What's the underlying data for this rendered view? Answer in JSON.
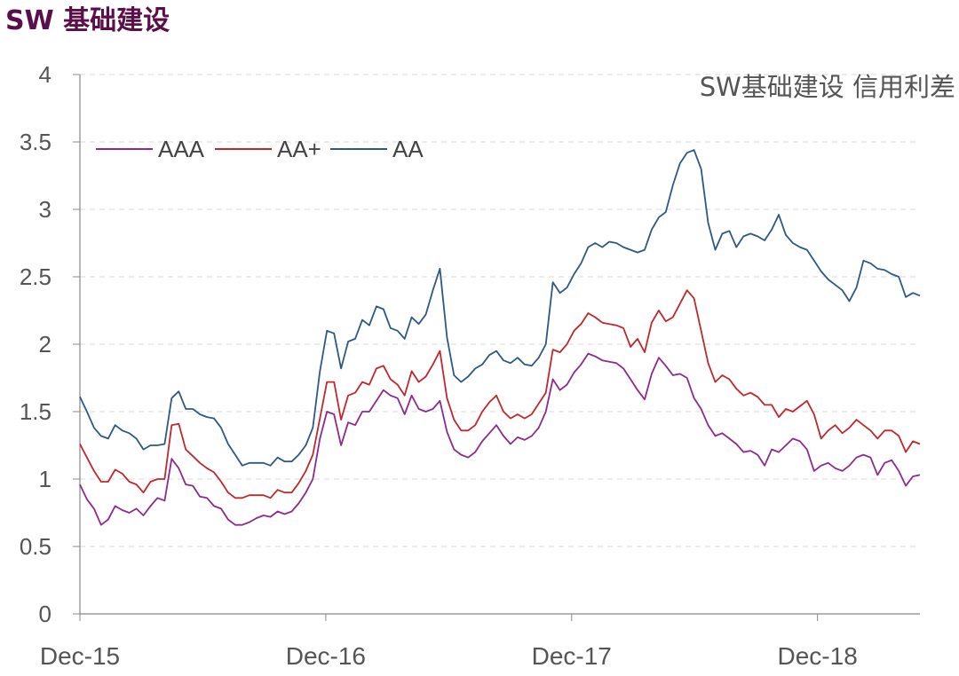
{
  "page_title": "SW 基础建设",
  "chart_data": {
    "type": "line",
    "title": "SW基础建设 信用利差",
    "xlabel": "",
    "ylabel": "",
    "ylim": [
      0,
      4
    ],
    "yticks": [
      "0",
      "0.5",
      "1",
      "1.5",
      "2",
      "2.5",
      "3",
      "3.5",
      "4"
    ],
    "xticks": [
      "Dec-15",
      "Dec-16",
      "Dec-17",
      "Dec-18"
    ],
    "x_start": "2015-12",
    "x_end": "2019-05",
    "grid": "horizontal dashed",
    "legend_position": "top-left",
    "series": [
      {
        "name": "AAA",
        "color": "#8e2a8e",
        "values": [
          0.96,
          0.85,
          0.78,
          0.66,
          0.7,
          0.8,
          0.77,
          0.75,
          0.78,
          0.73,
          0.8,
          0.86,
          0.84,
          1.15,
          1.08,
          0.96,
          0.95,
          0.87,
          0.86,
          0.8,
          0.78,
          0.7,
          0.66,
          0.66,
          0.68,
          0.71,
          0.73,
          0.72,
          0.76,
          0.74,
          0.76,
          0.82,
          0.9,
          1.0,
          1.3,
          1.5,
          1.48,
          1.25,
          1.42,
          1.4,
          1.5,
          1.5,
          1.58,
          1.66,
          1.62,
          1.6,
          1.48,
          1.62,
          1.52,
          1.5,
          1.52,
          1.58,
          1.35,
          1.22,
          1.18,
          1.16,
          1.2,
          1.28,
          1.34,
          1.4,
          1.32,
          1.26,
          1.31,
          1.29,
          1.32,
          1.38,
          1.5,
          1.74,
          1.66,
          1.7,
          1.79,
          1.85,
          1.93,
          1.91,
          1.88,
          1.87,
          1.86,
          1.82,
          1.74,
          1.66,
          1.59,
          1.78,
          1.9,
          1.84,
          1.77,
          1.78,
          1.75,
          1.6,
          1.52,
          1.4,
          1.32,
          1.34,
          1.3,
          1.26,
          1.2,
          1.21,
          1.18,
          1.1,
          1.22,
          1.2,
          1.25,
          1.3,
          1.28,
          1.22,
          1.06,
          1.1,
          1.12,
          1.08,
          1.06,
          1.1,
          1.16,
          1.18,
          1.16,
          1.03,
          1.12,
          1.14,
          1.06,
          0.95,
          1.02,
          1.03
        ]
      },
      {
        "name": "AA+",
        "color": "#c0282d",
        "values": [
          1.26,
          1.16,
          1.06,
          0.98,
          0.98,
          1.07,
          1.04,
          0.98,
          0.96,
          0.9,
          0.98,
          1.0,
          1.0,
          1.4,
          1.41,
          1.22,
          1.17,
          1.12,
          1.08,
          1.05,
          0.98,
          0.9,
          0.86,
          0.86,
          0.88,
          0.88,
          0.88,
          0.86,
          0.92,
          0.9,
          0.9,
          0.97,
          1.06,
          1.18,
          1.45,
          1.72,
          1.72,
          1.44,
          1.62,
          1.64,
          1.72,
          1.7,
          1.82,
          1.84,
          1.74,
          1.7,
          1.62,
          1.8,
          1.72,
          1.76,
          1.85,
          1.95,
          1.6,
          1.44,
          1.36,
          1.36,
          1.4,
          1.5,
          1.57,
          1.62,
          1.5,
          1.45,
          1.48,
          1.45,
          1.48,
          1.56,
          1.64,
          1.96,
          1.94,
          2.0,
          2.1,
          2.15,
          2.23,
          2.2,
          2.16,
          2.15,
          2.14,
          2.12,
          1.98,
          2.04,
          1.94,
          2.16,
          2.25,
          2.17,
          2.2,
          2.3,
          2.4,
          2.34,
          2.1,
          1.86,
          1.72,
          1.77,
          1.74,
          1.67,
          1.62,
          1.64,
          1.61,
          1.55,
          1.55,
          1.46,
          1.52,
          1.5,
          1.54,
          1.58,
          1.48,
          1.3,
          1.36,
          1.4,
          1.34,
          1.38,
          1.44,
          1.4,
          1.36,
          1.3,
          1.36,
          1.36,
          1.32,
          1.2,
          1.28,
          1.26
        ]
      },
      {
        "name": "AA",
        "color": "#2c5986",
        "values": [
          1.61,
          1.5,
          1.38,
          1.32,
          1.3,
          1.4,
          1.36,
          1.34,
          1.3,
          1.22,
          1.25,
          1.25,
          1.26,
          1.6,
          1.65,
          1.52,
          1.52,
          1.48,
          1.46,
          1.45,
          1.38,
          1.26,
          1.18,
          1.1,
          1.12,
          1.12,
          1.12,
          1.1,
          1.16,
          1.13,
          1.13,
          1.18,
          1.25,
          1.38,
          1.8,
          2.1,
          2.08,
          1.82,
          2.02,
          2.04,
          2.18,
          2.14,
          2.28,
          2.26,
          2.12,
          2.1,
          2.04,
          2.2,
          2.15,
          2.22,
          2.4,
          2.56,
          2.05,
          1.77,
          1.72,
          1.76,
          1.82,
          1.85,
          1.92,
          1.95,
          1.88,
          1.86,
          1.9,
          1.85,
          1.84,
          1.9,
          2.0,
          2.46,
          2.38,
          2.42,
          2.52,
          2.6,
          2.72,
          2.75,
          2.72,
          2.76,
          2.75,
          2.72,
          2.7,
          2.68,
          2.7,
          2.85,
          2.94,
          2.98,
          3.18,
          3.34,
          3.42,
          3.44,
          3.3,
          2.9,
          2.7,
          2.82,
          2.84,
          2.72,
          2.8,
          2.82,
          2.8,
          2.77,
          2.85,
          2.96,
          2.81,
          2.75,
          2.72,
          2.7,
          2.62,
          2.54,
          2.48,
          2.44,
          2.4,
          2.32,
          2.42,
          2.62,
          2.6,
          2.56,
          2.55,
          2.52,
          2.5,
          2.35,
          2.38,
          2.36
        ]
      }
    ]
  }
}
